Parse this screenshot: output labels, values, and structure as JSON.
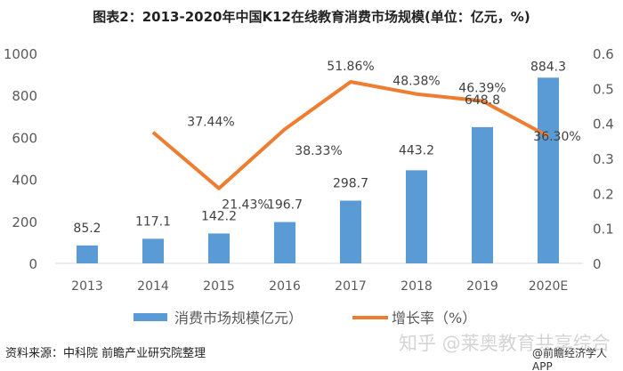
{
  "chart_data": {
    "type": "bar+line",
    "title": "图表2：2013-2020年中国K12在线教育消费市场规模(单位：亿元，%)",
    "categories": [
      "2013",
      "2014",
      "2015",
      "2016",
      "2017",
      "2018",
      "2019",
      "2020E"
    ],
    "series": [
      {
        "name": "消费市场规模亿元）",
        "type": "bar",
        "axis": "left",
        "values": [
          85.2,
          117.1,
          142.2,
          196.7,
          298.7,
          443.2,
          648.8,
          884.3
        ],
        "labels": [
          "85.2",
          "117.1",
          "142.2",
          "196.7",
          "298.7",
          "443.2",
          "648.8",
          "884.3"
        ],
        "color": "#5B9BD5"
      },
      {
        "name": "增长率（%）",
        "type": "line",
        "axis": "right",
        "values": [
          null,
          0.3744,
          0.2143,
          0.3833,
          0.5186,
          0.4838,
          0.4639,
          0.363
        ],
        "labels": [
          "",
          "37.44%",
          "21.43%",
          "38.33%",
          "51.86%",
          "48.38%",
          "46.39%",
          "36.30%"
        ],
        "color": "#ED7D31"
      }
    ],
    "ylim_left": [
      0,
      1000
    ],
    "yticks_left": [
      "0",
      "200",
      "400",
      "600",
      "800",
      "1000"
    ],
    "ylim_right": [
      0,
      0.6
    ],
    "yticks_right": [
      "0",
      "0.1",
      "0.2",
      "0.3",
      "0.4",
      "0.5",
      "0.6"
    ],
    "legend_position": "bottom",
    "grid": false
  },
  "footer": {
    "source": "资料来源：中科院 前瞻产业研究院整理",
    "watermark_zhihu": "知乎 @莱奥教育共享综合",
    "watermark_app": "@前瞻经济学人APP"
  }
}
